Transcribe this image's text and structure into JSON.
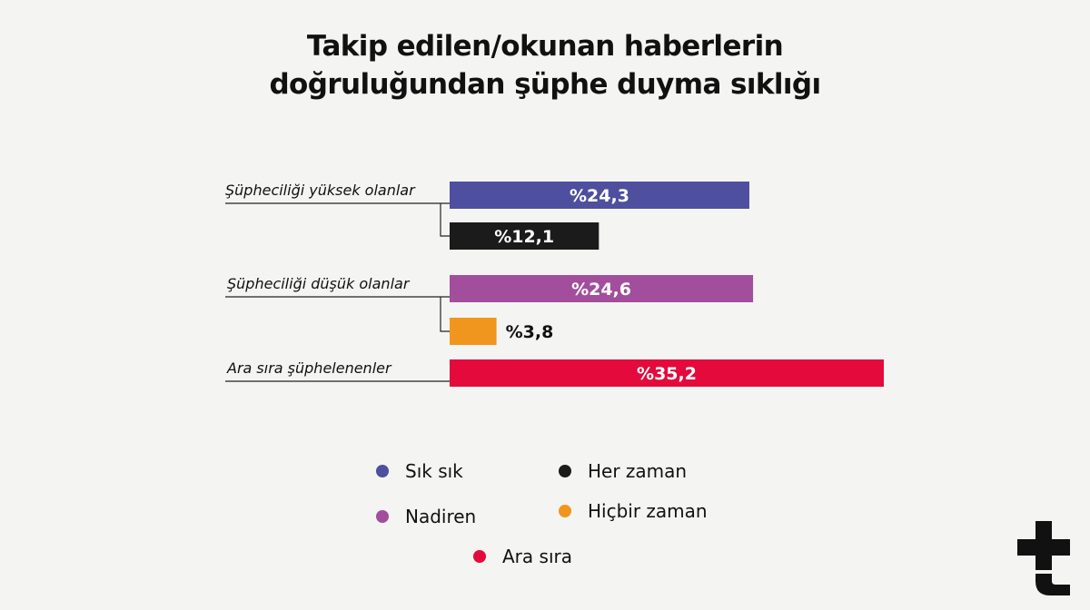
{
  "title_lines": [
    "Takip edilen/okunan haberlerin",
    "doğruluğundan şüphe duyma sıklığı"
  ],
  "chart_data": {
    "type": "bar",
    "orientation": "horizontal",
    "title": "Takip edilen/okunan haberlerin doğruluğundan şüphe duyma sıklığı",
    "xlim": [
      0,
      35.2
    ],
    "grid": false,
    "legend_placement": "bottom-center",
    "groups": [
      {
        "label": "Şüpheciliği yüksek olanlar",
        "bars": [
          {
            "category": "Sık sık",
            "value": 24.3,
            "label": "%24,3",
            "color": "#4e4f9e"
          },
          {
            "category": "Her zaman",
            "value": 12.1,
            "label": "%12,1",
            "color": "#1b1b1b"
          }
        ]
      },
      {
        "label": "Şüpheciliği düşük olanlar",
        "bars": [
          {
            "category": "Nadiren",
            "value": 24.6,
            "label": "%24,6",
            "color": "#a24e9c"
          },
          {
            "category": "Hiçbir zaman",
            "value": 3.8,
            "label": "%3,8",
            "color": "#f0961f"
          }
        ]
      },
      {
        "label": "Ara sıra şüphelenenler",
        "bars": [
          {
            "category": "Ara sıra",
            "value": 35.2,
            "label": "%35,2",
            "color": "#e40a3b"
          }
        ]
      }
    ],
    "legend": [
      {
        "label": "Sık sık",
        "color": "#4e4f9e"
      },
      {
        "label": "Her zaman",
        "color": "#1b1b1b"
      },
      {
        "label": "Nadiren",
        "color": "#a24e9c"
      },
      {
        "label": "Hiçbir zaman",
        "color": "#f0961f"
      },
      {
        "label": "Ara sıra",
        "color": "#e40a3b"
      }
    ]
  },
  "logo": {
    "icon": "t24-logo-icon",
    "color": "#111111"
  }
}
